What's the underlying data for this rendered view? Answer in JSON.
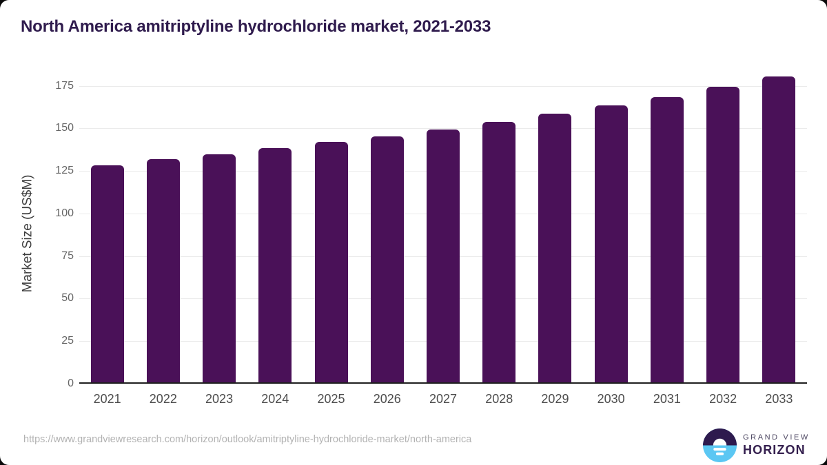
{
  "chart_data": {
    "type": "bar",
    "title": "North America amitriptyline hydrochloride market, 2021-2033",
    "categories": [
      "2021",
      "2022",
      "2023",
      "2024",
      "2025",
      "2026",
      "2027",
      "2028",
      "2029",
      "2030",
      "2031",
      "2032",
      "2033"
    ],
    "values": [
      128.5,
      132,
      135,
      138.5,
      142,
      145.5,
      149.5,
      154,
      158.5,
      163.5,
      168.5,
      174.5,
      180.5
    ],
    "xlabel": "",
    "ylabel": "Market Size (US$M)",
    "ylim": [
      0,
      185
    ],
    "yticks": [
      0,
      25,
      50,
      75,
      100,
      125,
      150,
      175
    ],
    "grid": true,
    "legend": false,
    "bar_color": "#4a1158"
  },
  "footer": {
    "source_url": "https://www.grandviewresearch.com/horizon/outlook/amitriptyline-hydrochloride-market/north-america",
    "logo_line1": "GRAND VIEW",
    "logo_line2": "HORIZON"
  },
  "colors": {
    "title_text": "#2f1b4d",
    "bar": "#4a1158",
    "axis_line": "#1f1f1f",
    "gridline": "#ebebeb",
    "ytick_label": "#666666",
    "xtick_label": "#4d4d4d",
    "url_text": "#b2b2b2",
    "logo_dark": "#2e1a4e",
    "logo_blue": "#5bc7f3"
  }
}
